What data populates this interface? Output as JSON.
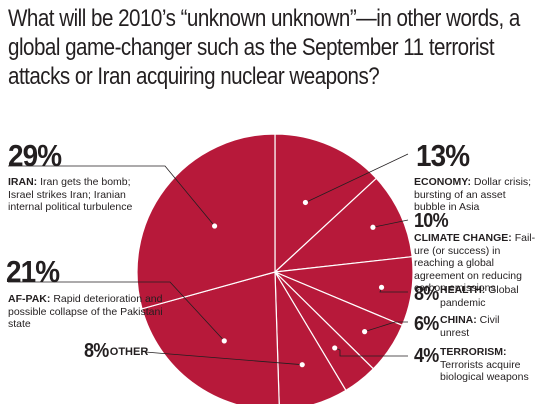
{
  "title": "What will be 2010’s “unknown unknown”—in other words, a global game-changer such as the September 11 terrorist attacks or Iran acquiring nuclear weapons?",
  "colors": {
    "pie_fill": "#b7193a",
    "pie_stroke": "#ffffff",
    "leader": "#231f20"
  },
  "chart_data": {
    "type": "pie",
    "title": "What will be 2010’s “unknown unknown”—in other words, a global game-changer such as the September 11 terrorist attacks or Iran acquiring nuclear weapons?",
    "slices": [
      {
        "percent_label": "13%",
        "value": 13,
        "name": "ECONOMY:",
        "description": "Dollar crisis; bursting of an asset bubble in Asia"
      },
      {
        "percent_label": "10%",
        "value": 10,
        "name": "CLIMATE CHANGE:",
        "description": "Fail-ure (or success) in reaching a global agreement on reducing carbon emissions"
      },
      {
        "percent_label": "8%",
        "value": 8,
        "name": "HEALTH:",
        "description": "Global pandemic"
      },
      {
        "percent_label": "6%",
        "value": 6,
        "name": "CHINA:",
        "description": "Civil unrest"
      },
      {
        "percent_label": "4%",
        "value": 4,
        "name": "TERRORISM:",
        "description": "Terrorists acquire biological weapons"
      },
      {
        "percent_label": "8%",
        "value": 8,
        "name": "OTHER",
        "description": ""
      },
      {
        "percent_label": "21%",
        "value": 21,
        "name": "AF-PAK:",
        "description": "Rapid deterioration and possible collapse of the Pakistani state"
      },
      {
        "percent_label": "29%",
        "value": 29,
        "name": "IRAN:",
        "description": "Iran gets the bomb; Israel strikes Iran; Iranian internal political turbulence"
      }
    ]
  }
}
